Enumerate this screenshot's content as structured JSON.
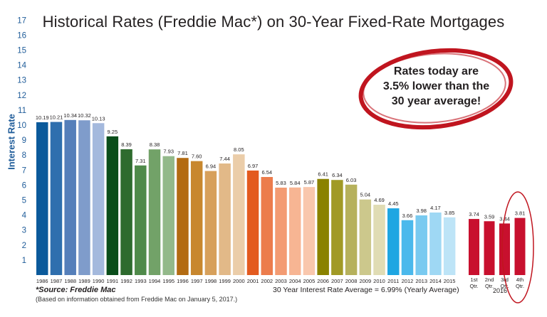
{
  "chart_data": {
    "type": "bar",
    "title": "Historical Rates (Freddie Mac*) on 30-Year Fixed-Rate Mortgages",
    "ylabel": "Interest Rate",
    "ylim": [
      0,
      17
    ],
    "yticks": [
      "1",
      "2",
      "3",
      "4",
      "5",
      "6",
      "7",
      "8",
      "9",
      "10",
      "11",
      "12",
      "13",
      "14",
      "15",
      "16",
      "17"
    ],
    "grid": false,
    "categories": [
      "1986",
      "1987",
      "1988",
      "1989",
      "1990",
      "1991",
      "1992",
      "1993",
      "1994",
      "1995",
      "1996",
      "1997",
      "1998",
      "1999",
      "2000",
      "2001",
      "2002",
      "2003",
      "2004",
      "2005",
      "2006",
      "2007",
      "2008",
      "2009",
      "2010",
      "2011",
      "2012",
      "2013",
      "2014",
      "2015"
    ],
    "values": [
      10.19,
      10.21,
      10.34,
      10.32,
      10.13,
      9.25,
      8.39,
      7.31,
      8.38,
      7.93,
      7.81,
      7.6,
      6.94,
      7.44,
      8.05,
      6.97,
      6.54,
      5.83,
      5.84,
      5.87,
      6.41,
      6.34,
      6.03,
      5.04,
      4.69,
      4.45,
      3.66,
      3.98,
      4.17,
      3.85
    ],
    "value_labels": [
      "10.19",
      "10.21",
      "10.34",
      "10.32",
      "10.13",
      "9.25",
      "8.39",
      "7.31",
      "8.38",
      "7.93",
      "7.81",
      "7.60",
      "6.94",
      "7.44",
      "8.05",
      "6.97",
      "6.54",
      "5.83",
      "5.84",
      "5.87",
      "6.41",
      "6.34",
      "6.03",
      "5.04",
      "4.69",
      "4.45",
      "3.66",
      "3.98",
      "4.17",
      "3.85"
    ],
    "colors": [
      "#0b5a9b",
      "#2f6fae",
      "#557fba",
      "#7f9ccb",
      "#a4b9dd",
      "#0a4d1a",
      "#2e6b2e",
      "#4f8a4a",
      "#72a268",
      "#93b98a",
      "#b36b12",
      "#c8872e",
      "#d7a05b",
      "#e2b988",
      "#ebcda9",
      "#e35a1f",
      "#ec7c4c",
      "#f39b72",
      "#f7b593",
      "#f9c7ad",
      "#8a8200",
      "#a19a26",
      "#b6b15c",
      "#ccc88c",
      "#e0dcb4",
      "#1ea6e2",
      "#4bb9ec",
      "#79caf0",
      "#9fd8f4",
      "#bde4f7"
    ],
    "quarters": {
      "categories": [
        "1st Qtr.",
        "2nd Qtr.",
        "3rd Qtr.",
        "4th Qtr."
      ],
      "values": [
        3.74,
        3.59,
        3.44,
        3.81
      ],
      "value_labels": [
        "3.74",
        "3.59",
        "3.44",
        "3.81"
      ],
      "year_label": "2016",
      "color": "#c8102e",
      "highlight": "4th Qtr."
    }
  },
  "callout": {
    "line1": "Rates today are",
    "line2": "3.5% lower than the",
    "line3": "30 year average!"
  },
  "footer": {
    "source": "*Source: Freddie Mac",
    "based_on": "(Based on information obtained from Freddie Mac on January 5, 2017.)",
    "average": "30 Year Interest Rate Average = 6.99% (Yearly Average)"
  }
}
